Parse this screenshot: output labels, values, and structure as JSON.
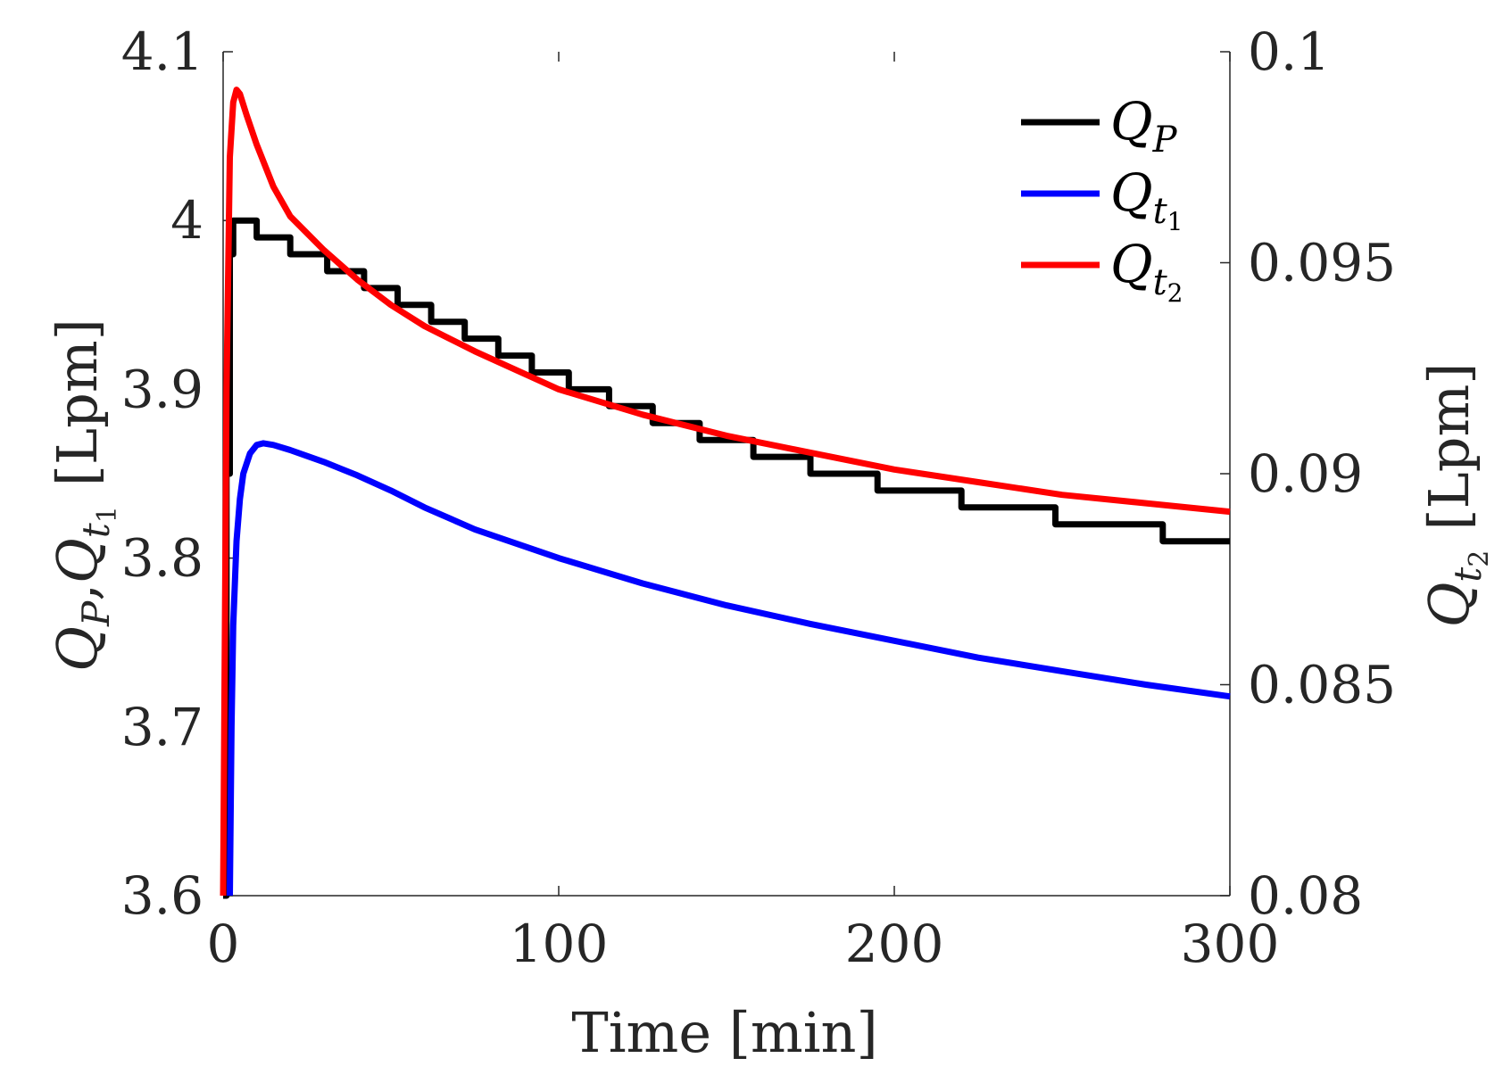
{
  "chart_data": {
    "type": "line",
    "xlabel": "Time [min]",
    "ylabel_left": {
      "base": "Q",
      "sub1": "P",
      "sep": ",",
      "sub2": "t",
      "sub2_sub": "1",
      "unit": "[Lpm]"
    },
    "ylabel_right": {
      "base": "Q",
      "sub": "t",
      "sub_sub": "2",
      "unit": "[Lpm]"
    },
    "xlim": [
      0,
      300
    ],
    "ylim_left": [
      3.6,
      4.1
    ],
    "ylim_right": [
      0.08,
      0.1
    ],
    "x_ticks": [
      "0",
      "100",
      "200",
      "300"
    ],
    "y_ticks_left": [
      "3.6",
      "3.7",
      "3.8",
      "3.9",
      "4",
      "4.1"
    ],
    "y_ticks_right": [
      "0.08",
      "0.085",
      "0.09",
      "0.095",
      "0.1"
    ],
    "legend_position": "top-right",
    "legend": [
      {
        "label": "Q",
        "sub": "P",
        "subsub": "",
        "color": "#000000"
      },
      {
        "label": "Q",
        "sub": "t",
        "subsub": "1",
        "color": "#0000ff"
      },
      {
        "label": "Q",
        "sub": "t",
        "subsub": "2",
        "color": "#ff0000"
      }
    ],
    "series": [
      {
        "name": "Q_P",
        "axis": "left",
        "color": "#000000",
        "stepped": true,
        "x": [
          0,
          1,
          2,
          3,
          4,
          5,
          10,
          15,
          20,
          25,
          31,
          36,
          42,
          47,
          52,
          57,
          62,
          67,
          72,
          77,
          82,
          87,
          92,
          97,
          103,
          110,
          115,
          122,
          128,
          136,
          142,
          152,
          158,
          168,
          175,
          187,
          195,
          210,
          220,
          238,
          248,
          270,
          280,
          300
        ],
        "values": [
          3.6,
          3.85,
          3.98,
          4.0,
          4.0,
          4.0,
          3.99,
          3.99,
          3.98,
          3.98,
          3.97,
          3.97,
          3.96,
          3.96,
          3.95,
          3.95,
          3.94,
          3.94,
          3.93,
          3.93,
          3.92,
          3.92,
          3.91,
          3.91,
          3.9,
          3.9,
          3.89,
          3.89,
          3.88,
          3.88,
          3.87,
          3.87,
          3.86,
          3.86,
          3.85,
          3.85,
          3.84,
          3.84,
          3.83,
          3.83,
          3.82,
          3.82,
          3.81,
          3.81
        ]
      },
      {
        "name": "Q_t1",
        "axis": "left",
        "color": "#0000ff",
        "stepped": false,
        "x": [
          2,
          2.5,
          3,
          4,
          5,
          6,
          8,
          10,
          12,
          15,
          20,
          30,
          40,
          50,
          60,
          75,
          100,
          125,
          150,
          175,
          200,
          225,
          250,
          275,
          300
        ],
        "values": [
          3.6,
          3.7,
          3.76,
          3.81,
          3.835,
          3.85,
          3.862,
          3.867,
          3.868,
          3.867,
          3.864,
          3.857,
          3.849,
          3.84,
          3.83,
          3.817,
          3.8,
          3.785,
          3.772,
          3.761,
          3.751,
          3.741,
          3.733,
          3.725,
          3.718
        ]
      },
      {
        "name": "Q_t2",
        "axis": "right",
        "color": "#ff0000",
        "stepped": false,
        "x": [
          0,
          1,
          2,
          3,
          4,
          5,
          7,
          10,
          15,
          20,
          30,
          40,
          50,
          60,
          75,
          100,
          125,
          150,
          175,
          200,
          225,
          250,
          275,
          300
        ],
        "values": [
          0.08,
          0.092,
          0.0975,
          0.0988,
          0.0991,
          0.099,
          0.0985,
          0.0978,
          0.0968,
          0.0961,
          0.0953,
          0.0946,
          0.094,
          0.0935,
          0.0929,
          0.092,
          0.0914,
          0.0909,
          0.0905,
          0.0901,
          0.0898,
          0.0895,
          0.0893,
          0.0891
        ]
      }
    ]
  }
}
